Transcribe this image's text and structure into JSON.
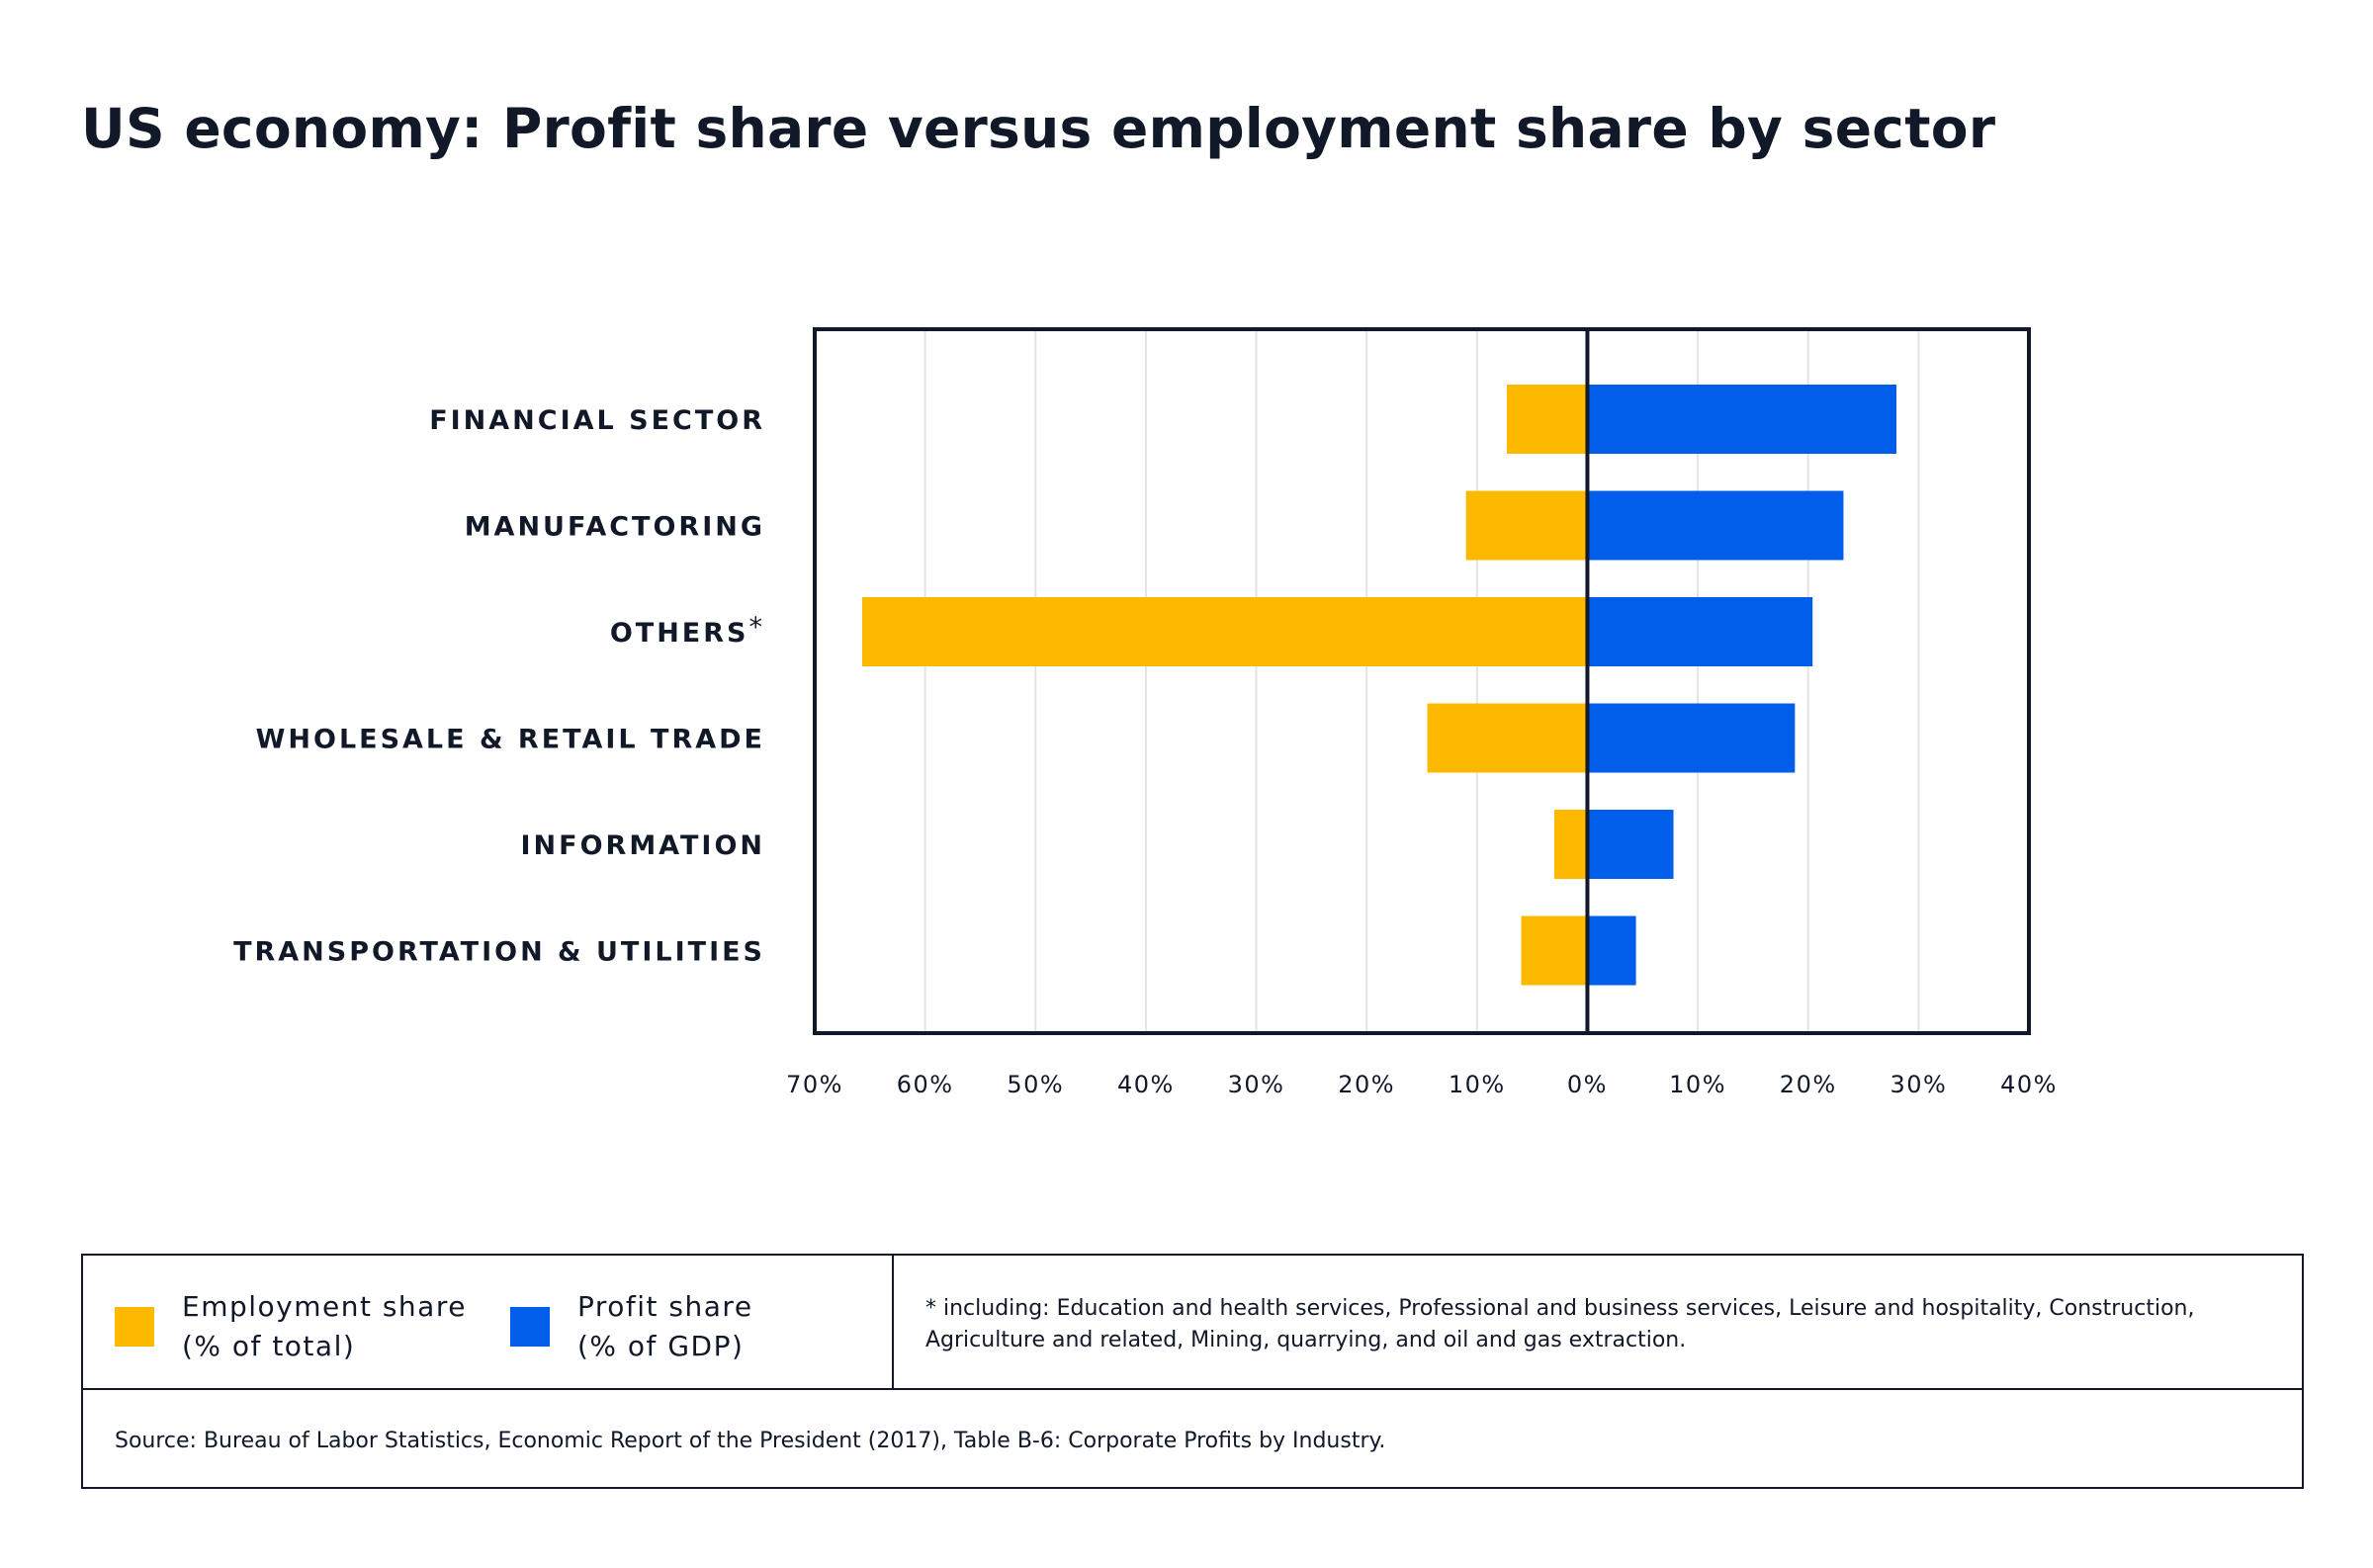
{
  "title": "US economy: Profit share versus employment share by sector",
  "colors": {
    "employment": "#FDB900",
    "profit": "#005EEB",
    "frame": "#111827",
    "grid": "#E4E4E4"
  },
  "chart_data": {
    "type": "bar",
    "orientation": "horizontal-diverging",
    "categories": [
      "FINANCIAL SECTOR",
      "MANUFACTORING",
      "OTHERS",
      "WHOLESALE & RETAIL TRADE",
      "INFORMATION",
      "TRANSPORTATION & UTILITIES"
    ],
    "category_suffix": [
      "",
      "",
      "*",
      "",
      "",
      ""
    ],
    "series": [
      {
        "name": "Employment share (% of total)",
        "direction": "left",
        "values": [
          7.3,
          11,
          65.7,
          14.5,
          3,
          6
        ]
      },
      {
        "name": "Profit share (% of GDP)",
        "direction": "right",
        "values": [
          28,
          23.2,
          20.4,
          18.8,
          7.8,
          4.4
        ]
      }
    ],
    "xlim": [
      -70,
      40
    ],
    "ticks": [
      "70%",
      "60%",
      "50%",
      "40%",
      "30%",
      "20%",
      "10%",
      "0%",
      "10%",
      "20%",
      "30%",
      "40%"
    ],
    "grid": true,
    "legend": "bottom-left"
  },
  "legend": {
    "employment": {
      "line1": "Employment share",
      "line2": "(% of total)"
    },
    "profit": {
      "line1": "Profit share",
      "line2": "(% of GDP)"
    }
  },
  "note": "* including: Education and health services, Professional and business services, Leisure and hospitality, Construction, Agriculture and related, Mining, quarrying, and oil and gas extraction.",
  "source": "Source: Bureau of Labor Statistics, Economic Report of the President (2017), Table B-6: Corporate Profits by Industry."
}
